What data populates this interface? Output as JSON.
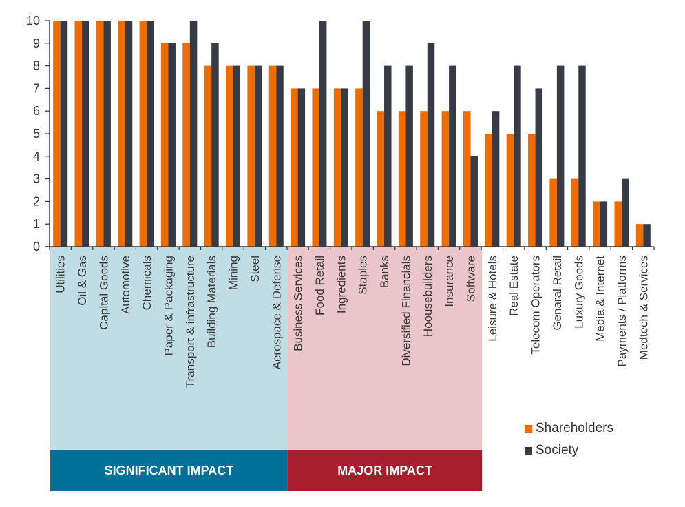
{
  "chart_data": {
    "type": "bar",
    "title": "",
    "xlabel": "",
    "ylabel": "",
    "ylim": [
      0,
      10
    ],
    "yticks": [
      0,
      1,
      2,
      3,
      4,
      5,
      6,
      7,
      8,
      9,
      10
    ],
    "grid": false,
    "legend_position": "bottom-right",
    "categories": [
      "Utilities",
      "Oil & Gas",
      "Capital Goods",
      "Automotive",
      "Chemicals",
      "Paper & Packaging",
      "Transport & infrastructure",
      "Building Materials",
      "Mining",
      "Steel",
      "Aerospace & Defense",
      "Business Services",
      "Food Retail",
      "Ingredients",
      "Staples",
      "Banks",
      "Diversified Financials",
      "Hoousebuilders",
      "Insurance",
      "Software",
      "Leisure & Hotels",
      "Real Estate",
      "Telecom Operators",
      "Genaral Retail",
      "Luxury Goods",
      "Media & Internet",
      "Payments / Platforms",
      "Medtech & Services"
    ],
    "series": [
      {
        "name": "Shareholders",
        "color": "#ee6c00",
        "values": [
          10,
          10,
          10,
          10,
          10,
          9,
          9,
          8,
          8,
          8,
          8,
          7,
          7,
          7,
          7,
          6,
          6,
          6,
          6,
          6,
          5,
          5,
          5,
          3,
          3,
          2,
          2,
          1
        ]
      },
      {
        "name": "Society",
        "color": "#363b45",
        "values": [
          10,
          10,
          10,
          10,
          10,
          9,
          10,
          9,
          8,
          8,
          8,
          7,
          10,
          7,
          10,
          8,
          8,
          9,
          8,
          4,
          6,
          8,
          7,
          8,
          8,
          2,
          3,
          1
        ]
      }
    ],
    "groups": [
      {
        "label": "SIGNIFICANT IMPACT",
        "from": 0,
        "to": 10,
        "fill": "#c0dce4",
        "band": "#007096"
      },
      {
        "label": "MAJOR IMPACT",
        "from": 11,
        "to": 19,
        "fill": "#eac6ca",
        "band": "#a81e2e"
      }
    ]
  }
}
